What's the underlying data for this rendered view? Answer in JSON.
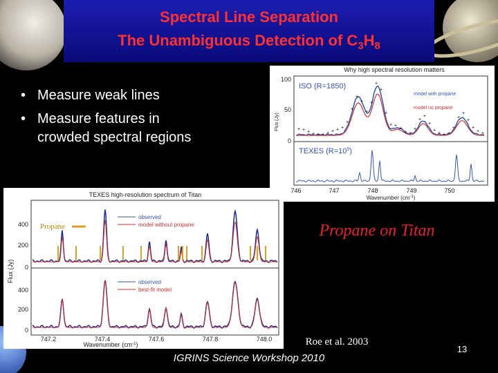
{
  "title": {
    "line1": "Spectral Line Separation",
    "line2": {
      "text": "The Unambiguous Detection of C",
      "sub1": "3",
      "mid": "H",
      "sub2": "8"
    }
  },
  "bullets": [
    "Measure weak lines",
    "Measure features in crowded spectral regions"
  ],
  "figure_top": {
    "title": "Why high spectral resolution matters",
    "panel1": "ISO (R=1850)",
    "legend": [
      "model with propane",
      "model no propane"
    ],
    "panel2": {
      "text": "TEXES (R=10",
      "sup": "5",
      "close": ")"
    },
    "yticks": [
      "100",
      "50",
      "0"
    ],
    "xticks": [
      "746",
      "747",
      "748",
      "749",
      "750"
    ],
    "xlabel": {
      "text": "Wavenumber (cm",
      "sup": "-1",
      "close": ")"
    },
    "ylabel": "Flux (Jy)"
  },
  "figure_bottom": {
    "title": "TEXES high-resolution spectrum of Titan",
    "legend_upper": [
      "observed",
      "model without propane"
    ],
    "legend_lower": [
      "observed",
      "best-fit model"
    ],
    "marker": "Propane",
    "yticks_upper": [
      "400",
      "200",
      "0"
    ],
    "yticks_lower": [
      "400",
      "200",
      "0"
    ],
    "xticks": [
      "747.2",
      "747.4",
      "747.6",
      "747.8",
      "748.0"
    ],
    "xlabel": {
      "text": "Wavenumber (cm",
      "sup": "-1",
      "close": ")"
    },
    "ylabel": "Flux (Jy)"
  },
  "caption": "Propane on Titan",
  "citation": "Roe et al. 2003",
  "footer": "IGRINS Science Workshop 2010",
  "page_number": "13"
}
